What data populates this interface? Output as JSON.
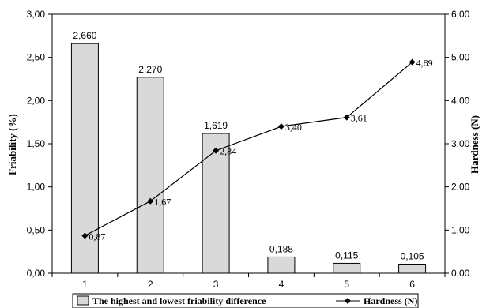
{
  "chart_data": {
    "type": "bar+line",
    "categories": [
      "1",
      "2",
      "3",
      "4",
      "5",
      "6"
    ],
    "bar_series": {
      "name": "The highest and lowest friability difference",
      "values": [
        2.66,
        2.27,
        1.619,
        0.188,
        0.115,
        0.105
      ],
      "labels": [
        "2,660",
        "2,270",
        "1,619",
        "0,188",
        "0,115",
        "0,105"
      ],
      "color": "#d9d9d9"
    },
    "line_series": {
      "name": "Hardness (N)",
      "values": [
        0.87,
        1.67,
        2.84,
        3.4,
        3.61,
        4.89
      ],
      "labels": [
        "0,87",
        "1,67",
        "2,84",
        "3,40",
        "3,61",
        "4,89"
      ],
      "color": "#000000",
      "marker": "diamond"
    },
    "y_left": {
      "label": "Friability (%)",
      "range": [
        0,
        3
      ],
      "ticks": [
        "0,00",
        "0,50",
        "1,00",
        "1,50",
        "2,00",
        "2,50",
        "3,00"
      ]
    },
    "y_right": {
      "label": "Hardness (N)",
      "range": [
        0,
        6
      ],
      "ticks": [
        "0,00",
        "1,00",
        "2,00",
        "3,00",
        "4,00",
        "5,00",
        "6,00"
      ]
    },
    "grid": false,
    "legend_position": "bottom"
  }
}
